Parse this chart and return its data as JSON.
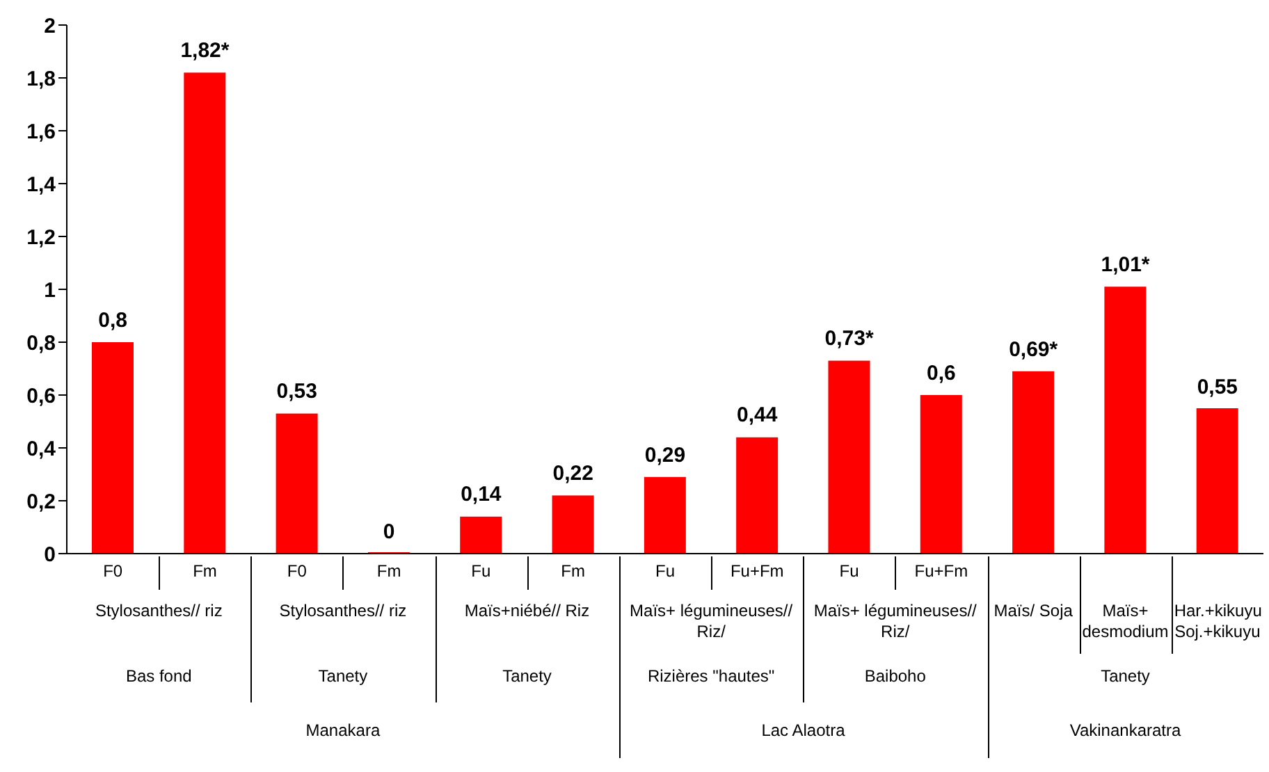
{
  "chart_data": {
    "type": "bar",
    "categories": [
      "F0",
      "Fm",
      "F0",
      "Fm",
      "Fu",
      "Fm",
      "Fu",
      "Fu+Fm",
      "Fu",
      "Fu+Fm",
      null,
      null,
      null
    ],
    "values": [
      0.8,
      1.82,
      0.53,
      0,
      0.14,
      0.22,
      0.29,
      0.44,
      0.73,
      0.6,
      0.69,
      1.01,
      0.55
    ],
    "value_labels": [
      "0,8",
      "1,82*",
      "0,53",
      "0",
      "0,14",
      "0,22",
      "0,29",
      "0,44",
      "0,73*",
      "0,6",
      "0,69*",
      "1,01*",
      "0,55"
    ],
    "color": "#ff0000",
    "ylim": [
      0,
      2
    ],
    "yticks": [
      0,
      {
        "value": 0.2,
        "label": "0,2"
      },
      {
        "value": 0.4,
        "label": "0,4"
      },
      {
        "value": 0.6,
        "label": "0,6"
      },
      {
        "value": 0.8,
        "label": "0,8"
      },
      1,
      {
        "value": 1.2,
        "label": "1,2"
      },
      {
        "value": 1.4,
        "label": "1,4"
      },
      {
        "value": 1.6,
        "label": "1,6"
      },
      {
        "value": 1.8,
        "label": "1,8"
      },
      2
    ],
    "grid": false,
    "legend": false,
    "annotations": [
      "Stylosanthes// riz",
      "Stylosanthes// riz",
      "Maïs+niébé// Riz",
      "Maïs+ légumineuses// Riz/",
      "Maïs+ légumineuses// Riz/",
      "Maïs/ Soja",
      "Maïs+ desmodium",
      "Har.+kikuyu Soj.+kikuyu",
      "Bas fond",
      "Tanety",
      "Tanety",
      "Rizières \"hautes\"",
      "Baiboho",
      "Tanety",
      "Manakara",
      "Lac Alaotra",
      "Vakinankaratra"
    ]
  }
}
